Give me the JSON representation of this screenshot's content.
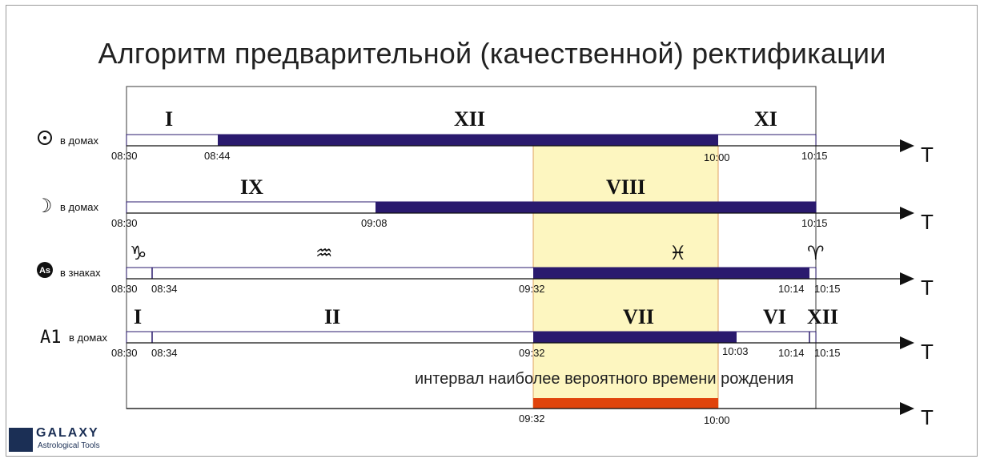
{
  "title": "Алгоритм предварительной (качественной) ректификации",
  "axis_label": "T",
  "note": "интервал наиболее вероятного времени рождения",
  "colors": {
    "bar": "#2a1a6e",
    "highlight": "#fdf6c0",
    "interval": "#e0440c",
    "border": "#5a5a5a"
  },
  "rows": [
    {
      "label_icon": "sun-symbol",
      "label_glyph": "☉",
      "label": "в домах",
      "start_label": "08:30",
      "ticks": [
        "08:44",
        "10:00",
        "10:15"
      ],
      "divisions": [
        "I",
        "XII",
        "XI"
      ]
    },
    {
      "label_icon": "moon-symbol",
      "label_glyph": "☽",
      "label": "в домах",
      "start_label": "08:30",
      "ticks": [
        "09:08",
        "10:15"
      ],
      "divisions": [
        "IX",
        "VIII"
      ]
    },
    {
      "label_icon": "ascendant-symbol",
      "label_glyph": "As",
      "label": "в знаках",
      "start_label": "08:30",
      "ticks": [
        "08:34",
        "09:32",
        "10:14",
        "10:15"
      ],
      "divisions": [
        "♑",
        "♒",
        "♓",
        "♈"
      ]
    },
    {
      "label_icon": "a1-symbol",
      "label_glyph": "A1",
      "label": "в домах",
      "start_label": "08:30",
      "ticks": [
        "08:34",
        "09:32",
        "10:03",
        "10:14",
        "10:15"
      ],
      "divisions": [
        "I",
        "II",
        "VII",
        "VI",
        "XII"
      ]
    }
  ],
  "interval": {
    "start": "09:32",
    "end": "10:00"
  },
  "logo": {
    "name": "GALAXY",
    "subtitle": "Astrological Tools"
  }
}
